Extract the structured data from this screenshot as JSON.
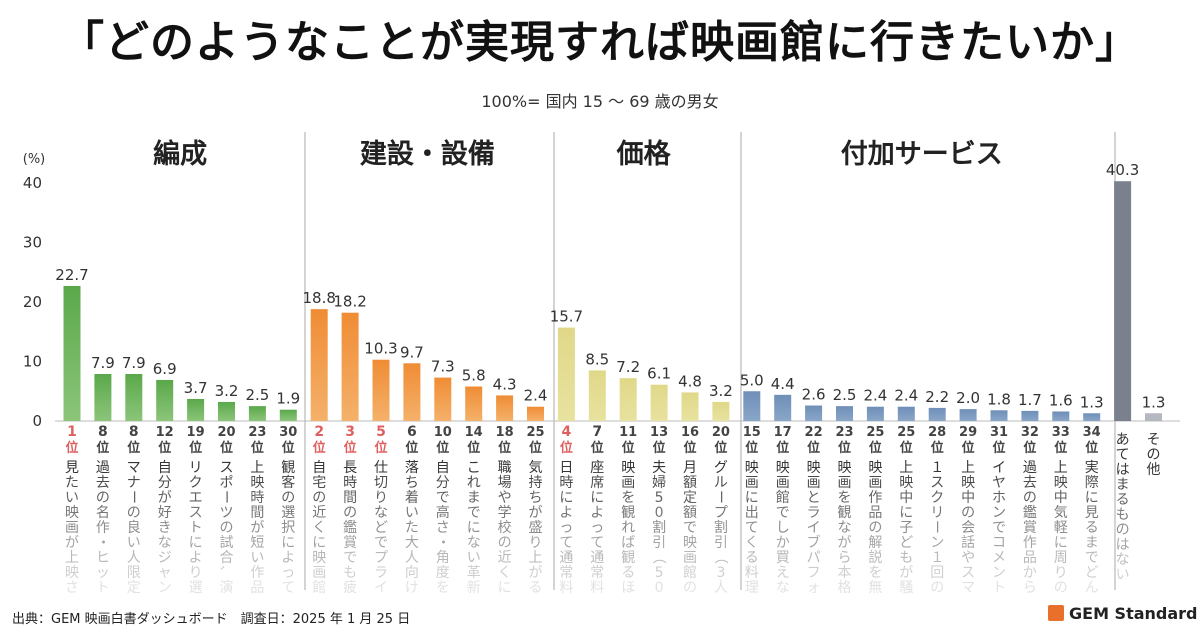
{
  "title": "「どのようなことが実現すれば映画館に行きたいか」",
  "subtitle": "100%= 国内 15 ～ 69 歳の男女",
  "source": "出典：GEM 映画白書ダッシュボード　調査日：2025 年 1 月 25 日",
  "logo": {
    "text": "GEM Standard",
    "icon": "orange-square-icon",
    "color": "#e8702a"
  },
  "chart_data": {
    "type": "bar",
    "ylabel": "(%)",
    "ylim": [
      0,
      40
    ],
    "yticks": [
      0,
      10,
      20,
      30,
      40
    ],
    "grid": false,
    "groups": [
      {
        "name": "編成",
        "color": "#8cc57a",
        "top_color": "#5aa84a",
        "count": 8
      },
      {
        "name": "建設・設備",
        "color": "#f4b16a",
        "top_color": "#f08c35",
        "count": 8
      },
      {
        "name": "価格",
        "color": "#e8e2a0",
        "top_color": "#e0d888",
        "count": 6
      },
      {
        "name": "付加サービス",
        "color": "#8aa6c8",
        "top_color": "#6f8fb8",
        "count": 12
      },
      {
        "name": "",
        "color": "#7a808c",
        "top_color": "#7a808c",
        "count": 1
      },
      {
        "name": "",
        "color": "#b5b8bf",
        "top_color": "#b5b8bf",
        "count": 1
      }
    ],
    "highlight_rank_color": "#e06060",
    "bars": [
      {
        "rank": "1位",
        "label": "見たい映画が上映さ",
        "value": 22.7,
        "value_label": "22.7",
        "highlight": true
      },
      {
        "rank": "8位",
        "label": "過去の名作・ヒット作",
        "value": 7.9,
        "value_label": "7.9"
      },
      {
        "rank": "8位",
        "label": "マナーの良い人限定の",
        "value": 7.9,
        "value_label": "7.9"
      },
      {
        "rank": "12位",
        "label": "自分が好きなジャンル",
        "value": 6.9,
        "value_label": "6.9"
      },
      {
        "rank": "19位",
        "label": "リクエストにより選ば",
        "value": 3.7,
        "value_label": "3.7"
      },
      {
        "rank": "20位",
        "label": "スポーツの試合、演劇",
        "value": 3.2,
        "value_label": "3.2"
      },
      {
        "rank": "23位",
        "label": "上映時間が短い作品が",
        "value": 2.5,
        "value_label": "2.5"
      },
      {
        "rank": "30位",
        "label": "観客の選択によって",
        "value": 1.9,
        "value_label": "1.9"
      },
      {
        "rank": "2位",
        "label": "自宅の近くに映画館が",
        "value": 18.8,
        "value_label": "18.8",
        "highlight": true
      },
      {
        "rank": "3位",
        "label": "長時間の鑑賞でも疲れ",
        "value": 18.2,
        "value_label": "18.2",
        "highlight": true
      },
      {
        "rank": "5位",
        "label": "仕切りなどでプライベ",
        "value": 10.3,
        "value_label": "10.3",
        "highlight": true
      },
      {
        "rank": "6位",
        "label": "落ち着いた大人向けの",
        "value": 9.7,
        "value_label": "9.7"
      },
      {
        "rank": "10位",
        "label": "自分で高さ・角度を調",
        "value": 7.3,
        "value_label": "7.3"
      },
      {
        "rank": "14位",
        "label": "これまでにない革新的",
        "value": 5.8,
        "value_label": "5.8"
      },
      {
        "rank": "18位",
        "label": "職場や学校の近くに映",
        "value": 4.3,
        "value_label": "4.3"
      },
      {
        "rank": "25位",
        "label": "気持ちが盛り上がる",
        "value": 2.4,
        "value_label": "2.4"
      },
      {
        "rank": "4位",
        "label": "日時によって通常料金",
        "value": 15.7,
        "value_label": "15.7",
        "highlight": true
      },
      {
        "rank": "7位",
        "label": "座席によって通常料金",
        "value": 8.5,
        "value_label": "8.5"
      },
      {
        "rank": "11位",
        "label": "映画を観れば観るほど",
        "value": 7.2,
        "value_label": "7.2"
      },
      {
        "rank": "13位",
        "label": "夫婦50割引（50歳以上",
        "value": 6.1,
        "value_label": "6.1"
      },
      {
        "rank": "16位",
        "label": "月額定額で映画館の映",
        "value": 4.8,
        "value_label": "4.8"
      },
      {
        "rank": "20位",
        "label": "グループ割引（3人以",
        "value": 3.2,
        "value_label": "3.2"
      },
      {
        "rank": "15位",
        "label": "映画に出てくる料理や",
        "value": 5.0,
        "value_label": "5.0"
      },
      {
        "rank": "17位",
        "label": "映画館でしか買えない",
        "value": 4.4,
        "value_label": "4.4"
      },
      {
        "rank": "22位",
        "label": "映画とライブパフォー",
        "value": 2.6,
        "value_label": "2.6"
      },
      {
        "rank": "23位",
        "label": "映画を観ながら本格的",
        "value": 2.5,
        "value_label": "2.5"
      },
      {
        "rank": "25位",
        "label": "映画作品の解説を無料",
        "value": 2.4,
        "value_label": "2.4"
      },
      {
        "rank": "25位",
        "label": "上映中に子どもが騒い",
        "value": 2.4,
        "value_label": "2.4"
      },
      {
        "rank": "28位",
        "label": "１スクリーン１回の上",
        "value": 2.2,
        "value_label": "2.2"
      },
      {
        "rank": "29位",
        "label": "上映中の会話やスマホ",
        "value": 2.0,
        "value_label": "2.0"
      },
      {
        "rank": "31位",
        "label": "イヤホンでコメントや",
        "value": 1.8,
        "value_label": "1.8"
      },
      {
        "rank": "32位",
        "label": "過去の鑑賞作品から好",
        "value": 1.7,
        "value_label": "1.7"
      },
      {
        "rank": "33位",
        "label": "上映中気軽に周りの人",
        "value": 1.6,
        "value_label": "1.6"
      },
      {
        "rank": "34位",
        "label": "実際に見るまでどんな",
        "value": 1.3,
        "value_label": "1.3"
      },
      {
        "rank": "",
        "label": "あてはまるものはない",
        "value": 40.3,
        "value_label": "40.3"
      },
      {
        "rank": "",
        "label": "その他",
        "value": 1.3,
        "value_label": "1.3"
      }
    ]
  }
}
